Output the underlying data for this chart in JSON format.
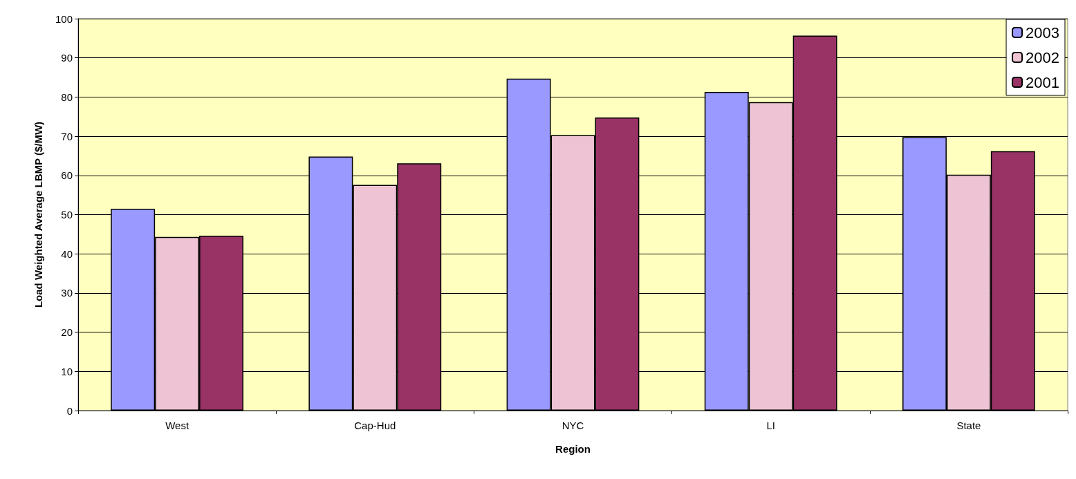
{
  "chart_data": {
    "type": "bar",
    "xlabel": "Region",
    "ylabel": "Load Weighted Average LBMP ($/MW)",
    "categories": [
      "West",
      "Cap-Hud",
      "NYC",
      "LI",
      "State"
    ],
    "series": [
      {
        "name": "2003",
        "color": "#9999ff",
        "values": [
          51.5,
          64.8,
          84.7,
          81.3,
          69.8
        ]
      },
      {
        "name": "2002",
        "color": "#eec4d4",
        "values": [
          44.3,
          57.6,
          70.3,
          78.7,
          60.2
        ]
      },
      {
        "name": "2001",
        "color": "#993366",
        "values": [
          44.6,
          63.1,
          74.8,
          95.7,
          66.2
        ]
      }
    ],
    "ylim": [
      0,
      100
    ],
    "yticks": [
      0,
      10,
      20,
      30,
      40,
      50,
      60,
      70,
      80,
      90,
      100
    ],
    "grid": "y",
    "legend": "top right"
  }
}
